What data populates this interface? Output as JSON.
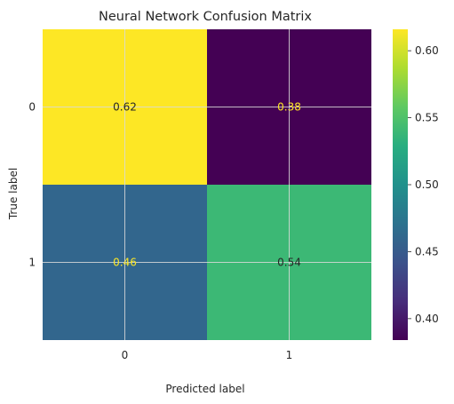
{
  "chart_data": {
    "type": "heatmap",
    "title": "Neural Network Confusion Matrix",
    "xlabel": "Predicted label",
    "ylabel": "True label",
    "x_categories": [
      "0",
      "1"
    ],
    "y_categories": [
      "0",
      "1"
    ],
    "values": [
      [
        0.62,
        0.38
      ],
      [
        0.46,
        0.54
      ]
    ],
    "cell_labels": [
      [
        "0.62",
        "0.38"
      ],
      [
        "0.46",
        "0.54"
      ]
    ],
    "colormap": "viridis",
    "color_range": [
      0.384,
      0.616
    ],
    "colorbar_ticks": [
      "0.60",
      "0.55",
      "0.50",
      "0.45",
      "0.40"
    ],
    "colorbar_tick_values": [
      0.6,
      0.55,
      0.5,
      0.45,
      0.4
    ],
    "grid": true,
    "colors": {
      "high_text": "#262626",
      "low_text": "#fde725",
      "grid": "#d9d9d9"
    }
  }
}
